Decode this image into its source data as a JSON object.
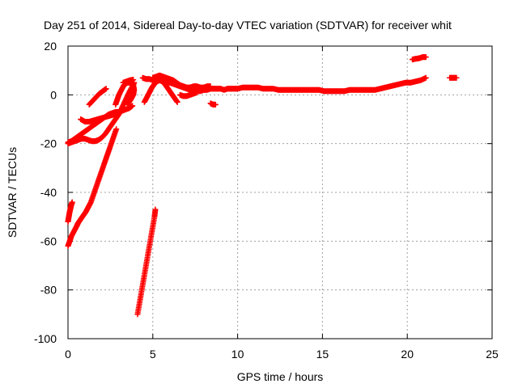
{
  "chart_data": {
    "type": "scatter",
    "title": "Day 251 of 2014, Sidereal Day-to-day VTEC variation (SDTVAR) for receiver whit",
    "xlabel": "GPS time / hours",
    "ylabel": "SDTVAR / TECUs",
    "xlim": [
      0,
      25
    ],
    "ylim": [
      -100,
      20
    ],
    "xticks": [
      0,
      5,
      10,
      15,
      20,
      25
    ],
    "yticks": [
      -100,
      -80,
      -60,
      -40,
      -20,
      0,
      20
    ],
    "grid": true,
    "marker": "plus",
    "color": "#ff0000",
    "series": [
      {
        "points": [
          [
            0.0,
            -62
          ],
          [
            0.1,
            -60
          ],
          [
            0.2,
            -58
          ],
          [
            0.35,
            -56
          ],
          [
            0.5,
            -54
          ],
          [
            0.6,
            -52.5
          ],
          [
            0.75,
            -51
          ],
          [
            0.9,
            -49.5
          ],
          [
            1.05,
            -48
          ],
          [
            1.2,
            -46
          ],
          [
            1.35,
            -44
          ],
          [
            1.5,
            -41
          ],
          [
            1.65,
            -38
          ],
          [
            1.8,
            -35
          ],
          [
            1.95,
            -32
          ],
          [
            2.1,
            -29
          ],
          [
            2.25,
            -26
          ],
          [
            2.4,
            -23
          ],
          [
            2.55,
            -20
          ],
          [
            2.7,
            -17
          ],
          [
            2.85,
            -14
          ]
        ]
      },
      {
        "points": [
          [
            0.0,
            -52
          ],
          [
            0.05,
            -50
          ],
          [
            0.1,
            -48
          ],
          [
            0.15,
            -46.5
          ],
          [
            0.2,
            -45
          ],
          [
            0.25,
            -44
          ]
        ]
      },
      {
        "points": [
          [
            0.0,
            -20
          ],
          [
            0.2,
            -19.5
          ],
          [
            0.4,
            -19
          ],
          [
            0.6,
            -18.5
          ],
          [
            0.8,
            -18
          ],
          [
            1.0,
            -18
          ],
          [
            1.2,
            -18.5
          ],
          [
            1.4,
            -19
          ],
          [
            1.6,
            -19
          ],
          [
            1.8,
            -18.5
          ],
          [
            2.0,
            -17.5
          ],
          [
            2.2,
            -16
          ],
          [
            2.4,
            -14
          ],
          [
            2.6,
            -12
          ],
          [
            2.8,
            -10
          ],
          [
            3.0,
            -8
          ],
          [
            3.2,
            -5
          ],
          [
            3.4,
            -2
          ],
          [
            3.6,
            1
          ],
          [
            3.8,
            3.5
          ],
          [
            3.9,
            5
          ]
        ]
      },
      {
        "points": [
          [
            0.0,
            -19.5
          ],
          [
            0.2,
            -19
          ],
          [
            0.4,
            -18
          ],
          [
            0.6,
            -17
          ],
          [
            0.8,
            -16
          ],
          [
            1.0,
            -15
          ],
          [
            1.2,
            -14
          ],
          [
            1.4,
            -13
          ],
          [
            1.6,
            -12
          ],
          [
            1.8,
            -11
          ],
          [
            2.0,
            -10
          ],
          [
            2.2,
            -9
          ],
          [
            2.4,
            -8
          ],
          [
            2.6,
            -7.5
          ],
          [
            2.8,
            -7
          ],
          [
            3.0,
            -7
          ],
          [
            3.2,
            -6.5
          ],
          [
            3.4,
            -6
          ],
          [
            3.6,
            -5.5
          ],
          [
            3.8,
            -4.5
          ]
        ]
      },
      {
        "points": [
          [
            0.75,
            -10
          ],
          [
            1.0,
            -11
          ],
          [
            1.25,
            -11
          ],
          [
            1.5,
            -10.5
          ],
          [
            1.75,
            -10
          ],
          [
            2.0,
            -9.5
          ],
          [
            2.25,
            -9
          ],
          [
            2.5,
            -8.5
          ],
          [
            2.75,
            -8
          ],
          [
            3.0,
            -7.5
          ]
        ]
      },
      {
        "points": [
          [
            1.25,
            -4
          ],
          [
            1.45,
            -2.5
          ],
          [
            1.65,
            -1
          ],
          [
            1.85,
            0.5
          ],
          [
            2.05,
            1.5
          ],
          [
            2.25,
            2.5
          ]
        ]
      },
      {
        "points": [
          [
            2.8,
            -4
          ],
          [
            2.9,
            -2
          ],
          [
            3.0,
            0
          ],
          [
            3.15,
            2
          ],
          [
            3.3,
            4
          ],
          [
            3.5,
            5
          ],
          [
            3.7,
            5
          ],
          [
            3.85,
            4
          ],
          [
            3.9,
            2
          ],
          [
            3.85,
            0
          ],
          [
            3.7,
            -2
          ],
          [
            3.5,
            -4
          ]
        ]
      },
      {
        "points": [
          [
            3.25,
            5
          ],
          [
            3.45,
            5.5
          ],
          [
            3.65,
            6
          ],
          [
            3.85,
            6.2
          ]
        ]
      },
      {
        "points": [
          [
            4.1,
            -90
          ],
          [
            4.2,
            -86
          ],
          [
            4.3,
            -82
          ],
          [
            4.4,
            -78
          ],
          [
            4.5,
            -74
          ],
          [
            4.6,
            -70
          ],
          [
            4.7,
            -66
          ],
          [
            4.8,
            -62
          ],
          [
            4.9,
            -58
          ],
          [
            5.0,
            -54
          ],
          [
            5.1,
            -50
          ],
          [
            5.15,
            -47
          ]
        ]
      },
      {
        "points": [
          [
            4.5,
            -3
          ],
          [
            4.65,
            -1
          ],
          [
            4.8,
            1
          ],
          [
            4.95,
            3
          ],
          [
            5.1,
            4.5
          ],
          [
            5.25,
            5.5
          ],
          [
            5.4,
            6
          ],
          [
            5.55,
            5.5
          ],
          [
            5.7,
            4.5
          ],
          [
            5.85,
            3
          ],
          [
            6.0,
            1.5
          ],
          [
            6.15,
            0
          ],
          [
            6.3,
            -1.5
          ],
          [
            6.45,
            -3
          ]
        ]
      },
      {
        "points": [
          [
            4.4,
            7
          ],
          [
            4.6,
            6.5
          ],
          [
            4.8,
            6.5
          ],
          [
            5.0,
            6
          ],
          [
            5.2,
            6.5
          ],
          [
            5.4,
            6
          ],
          [
            5.6,
            5.5
          ],
          [
            5.8,
            5
          ],
          [
            6.0,
            5
          ],
          [
            6.2,
            4.5
          ],
          [
            6.4,
            4
          ],
          [
            6.6,
            3.5
          ],
          [
            6.8,
            3
          ],
          [
            7.0,
            2.5
          ],
          [
            7.2,
            2
          ],
          [
            7.4,
            2
          ],
          [
            7.6,
            1.5
          ],
          [
            7.8,
            1.5
          ],
          [
            8.0,
            2
          ],
          [
            8.2,
            2
          ],
          [
            8.4,
            2.5
          ],
          [
            8.6,
            2.5
          ],
          [
            8.8,
            2.5
          ],
          [
            9.0,
            2.5
          ],
          [
            9.2,
            2
          ],
          [
            9.4,
            2.5
          ],
          [
            9.6,
            2.5
          ],
          [
            9.8,
            2.5
          ],
          [
            10.0,
            2.5
          ],
          [
            10.3,
            3
          ],
          [
            10.6,
            3
          ],
          [
            10.9,
            3
          ],
          [
            11.2,
            3
          ],
          [
            11.5,
            2.5
          ],
          [
            11.8,
            2.5
          ],
          [
            12.1,
            2.5
          ],
          [
            12.4,
            2
          ],
          [
            12.7,
            2
          ],
          [
            13.0,
            2
          ],
          [
            13.3,
            2
          ],
          [
            13.6,
            2
          ],
          [
            13.9,
            2
          ],
          [
            14.2,
            2
          ],
          [
            14.5,
            2
          ],
          [
            14.8,
            2
          ],
          [
            15.1,
            1.5
          ],
          [
            15.4,
            1.5
          ],
          [
            15.7,
            1.5
          ],
          [
            16.0,
            1.5
          ],
          [
            16.3,
            1.5
          ],
          [
            16.6,
            2
          ],
          [
            16.9,
            2
          ],
          [
            17.2,
            2
          ],
          [
            17.5,
            2
          ],
          [
            17.8,
            2
          ],
          [
            18.1,
            2
          ],
          [
            18.4,
            2.5
          ],
          [
            18.7,
            3
          ],
          [
            19.0,
            3.5
          ],
          [
            19.3,
            4
          ],
          [
            19.6,
            4.5
          ],
          [
            19.9,
            5
          ],
          [
            20.2,
            5
          ],
          [
            20.5,
            5.5
          ],
          [
            20.8,
            6
          ],
          [
            21.1,
            7
          ]
        ]
      },
      {
        "points": [
          [
            5.0,
            7
          ],
          [
            5.2,
            7.5
          ],
          [
            5.4,
            8
          ],
          [
            5.6,
            7.5
          ],
          [
            5.8,
            7
          ],
          [
            6.0,
            6.5
          ],
          [
            6.2,
            6
          ],
          [
            6.4,
            5
          ],
          [
            6.6,
            4
          ],
          [
            6.8,
            3.5
          ],
          [
            7.0,
            3
          ],
          [
            7.2,
            3
          ],
          [
            7.4,
            3.5
          ],
          [
            7.6,
            3.5
          ],
          [
            7.8,
            3
          ],
          [
            8.0,
            3
          ],
          [
            8.2,
            3.5
          ],
          [
            8.4,
            3.5
          ]
        ]
      },
      {
        "points": [
          [
            6.6,
            0
          ],
          [
            6.8,
            -0.5
          ],
          [
            7.0,
            -0.5
          ],
          [
            7.2,
            0
          ],
          [
            7.4,
            0.5
          ],
          [
            7.6,
            1
          ]
        ]
      },
      {
        "points": [
          [
            8.4,
            -3.5
          ],
          [
            8.55,
            -4
          ],
          [
            8.7,
            -4
          ]
        ]
      },
      {
        "points": [
          [
            20.3,
            14.5
          ],
          [
            20.5,
            14.8
          ],
          [
            20.7,
            15
          ],
          [
            20.9,
            15.5
          ],
          [
            21.1,
            15.5
          ]
        ]
      },
      {
        "points": [
          [
            22.5,
            7
          ],
          [
            22.7,
            7
          ],
          [
            22.9,
            7
          ]
        ]
      }
    ]
  }
}
